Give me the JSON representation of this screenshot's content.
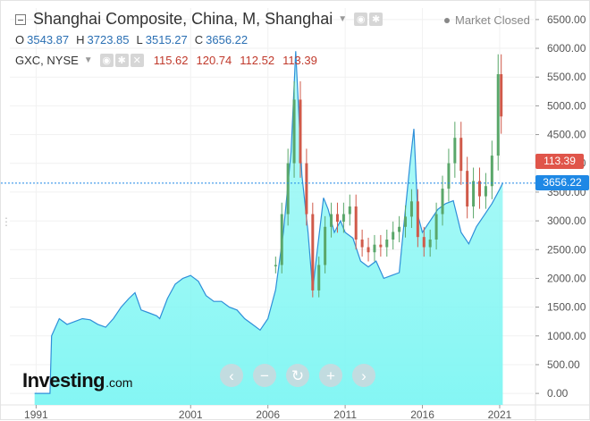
{
  "legend": {
    "main_title": "Shanghai Composite, China, M, Shanghai",
    "ohlc": [
      {
        "label": "O",
        "value": "3543.87"
      },
      {
        "label": "H",
        "value": "3723.85"
      },
      {
        "label": "L",
        "value": "3515.27"
      },
      {
        "label": "C",
        "value": "3656.22"
      }
    ],
    "gxc": {
      "name": "GXC, NYSE",
      "values": [
        "115.62",
        "120.74",
        "112.52",
        "113.39"
      ]
    }
  },
  "market_status": "Market Closed",
  "price_tags": {
    "gxc": "113.39",
    "main": "3656.22"
  },
  "logo": {
    "word": "Investing",
    "suffix": ".com"
  },
  "icons": {
    "collapse": "collapse-square-icon",
    "eye": "eye-icon",
    "settings": "gear-icon",
    "close": "close-icon",
    "zoom": [
      "chevron-left-icon",
      "minus-icon",
      "reset-icon",
      "plus-icon",
      "chevron-right-icon"
    ]
  },
  "zoom_glyphs": [
    "‹",
    "−",
    "↻",
    "+",
    "›"
  ],
  "colors": {
    "area_fill": "#7ef6f3",
    "area_line": "#2e8fd9",
    "candle_up": "#5aa76a",
    "candle_down": "#d05a4a",
    "guide_line": "#1e88e5",
    "gxc_tag": "#e0554a",
    "main_tag": "#1e88e5"
  },
  "chart_data": [
    {
      "type": "area",
      "series": [
        {
          "name": "Shanghai Composite, China, M, Shanghai"
        }
      ],
      "x": [
        1990.9,
        1991.9,
        1992.0,
        1992.5,
        1993.0,
        1993.5,
        1994.0,
        1994.5,
        1995.0,
        1995.5,
        1996.0,
        1996.5,
        1997.0,
        1997.4,
        1997.8,
        1998.3,
        1998.8,
        1999.0,
        1999.5,
        2000.0,
        2000.5,
        2001.0,
        2001.5,
        2002.0,
        2002.5,
        2003.0,
        2003.5,
        2004.0,
        2004.5,
        2005.0,
        2005.5,
        2006.0,
        2006.5,
        2007.0,
        2007.5,
        2007.8,
        2008.2,
        2008.6,
        2008.9,
        2009.2,
        2009.6,
        2009.9,
        2010.3,
        2010.7,
        2011.0,
        2011.5,
        2012.0,
        2012.5,
        2013.0,
        2013.5,
        2014.0,
        2014.5,
        2014.9,
        2015.2,
        2015.45,
        2015.7,
        2016.0,
        2016.5,
        2017.0,
        2017.5,
        2018.0,
        2018.5,
        2019.0,
        2019.5,
        2020.0,
        2020.5,
        2021.0,
        2021.2
      ],
      "y": [
        0,
        0,
        1000,
        1300,
        1200,
        1250,
        1300,
        1280,
        1200,
        1150,
        1300,
        1500,
        1650,
        1750,
        1450,
        1400,
        1350,
        1300,
        1650,
        1900,
        2000,
        2050,
        1950,
        1700,
        1600,
        1600,
        1500,
        1450,
        1300,
        1200,
        1100,
        1300,
        1800,
        2800,
        4200,
        5950,
        3800,
        2800,
        1800,
        2500,
        3400,
        3200,
        2800,
        3000,
        2800,
        2700,
        2300,
        2200,
        2300,
        2000,
        2050,
        2100,
        3200,
        4000,
        4600,
        3100,
        2800,
        3000,
        3200,
        3300,
        3350,
        2800,
        2600,
        2900,
        3100,
        3300,
        3550,
        3656
      ],
      "xlim": [
        1989.3,
        2023.2
      ],
      "ylim": [
        -200,
        6700
      ],
      "x_tick_labels": [
        "1991",
        "2001",
        "2006",
        "2011",
        "2016",
        "2021"
      ],
      "x_ticks": [
        1991,
        2001,
        2006,
        2011,
        2016,
        2021
      ],
      "y_tick_labels": [
        "0.00",
        "500.00",
        "1000.00",
        "1500.00",
        "2000.00",
        "2500.00",
        "3000.00",
        "3500.00",
        "4000.00",
        "4500.00",
        "5000.00",
        "5500.00",
        "6000.00",
        "6500.00"
      ],
      "y_ticks": [
        0,
        500,
        1000,
        1500,
        2000,
        2500,
        3000,
        3500,
        4000,
        4500,
        5000,
        5500,
        6000,
        6500
      ],
      "last_value": 3656.22,
      "grid": true
    },
    {
      "type": "candlestick",
      "series": [
        {
          "name": "GXC, NYSE"
        }
      ],
      "x": [
        2006.5,
        2006.9,
        2007.3,
        2007.7,
        2008.1,
        2008.5,
        2008.9,
        2009.3,
        2009.7,
        2010.1,
        2010.5,
        2010.9,
        2011.3,
        2011.7,
        2012.1,
        2012.5,
        2012.9,
        2013.3,
        2013.7,
        2014.1,
        2014.5,
        2014.9,
        2015.3,
        2015.7,
        2016.1,
        2016.5,
        2016.9,
        2017.3,
        2017.7,
        2018.1,
        2018.5,
        2018.9,
        2019.3,
        2019.7,
        2020.1,
        2020.5,
        2020.9,
        2021.1
      ],
      "values": [
        55,
        75,
        95,
        120,
        95,
        75,
        45,
        55,
        70,
        75,
        72,
        75,
        78,
        65,
        62,
        60,
        63,
        62,
        65,
        68,
        70,
        74,
        80,
        66,
        62,
        65,
        75,
        85,
        95,
        105,
        92,
        78,
        88,
        82,
        86,
        98,
        130,
        113.39
      ],
      "ylim": [
        0,
        156
      ],
      "last_value": 113.39
    }
  ]
}
